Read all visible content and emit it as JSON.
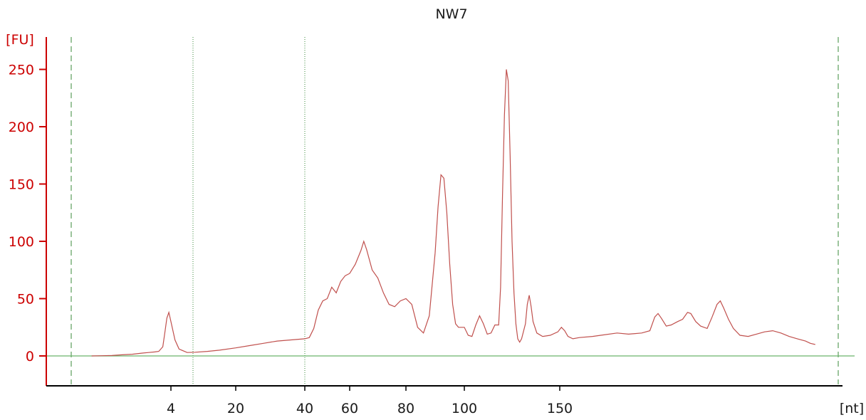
{
  "chart_data": {
    "type": "line",
    "title": "NW7",
    "ylabel": "[FU]",
    "xlabel": "[nt]",
    "ylim": [
      -25,
      270
    ],
    "y_ticks": [
      0,
      50,
      100,
      150,
      200,
      250
    ],
    "x_ticks": [
      4,
      20,
      40,
      60,
      80,
      100,
      150
    ],
    "grid": false,
    "colors": {
      "trace": "#c0504d",
      "baseline": "#6ab46a",
      "y_axis": "#cc0000",
      "x_axis": "#000000",
      "markers": "#3a8a3a"
    },
    "series": [
      {
        "values": [
          [
            -35,
            0
          ],
          [
            -30,
            0.2
          ],
          [
            -25,
            0.4
          ],
          [
            -20,
            1
          ],
          [
            -15,
            1.5
          ],
          [
            -10,
            2.5
          ],
          [
            -7,
            3
          ],
          [
            -4,
            3.5
          ],
          [
            -2,
            4
          ],
          [
            0,
            8
          ],
          [
            1,
            20
          ],
          [
            2,
            33
          ],
          [
            3,
            38
          ],
          [
            4,
            30
          ],
          [
            5,
            14
          ],
          [
            6,
            6
          ],
          [
            8,
            3
          ],
          [
            10,
            3.2
          ],
          [
            13,
            4
          ],
          [
            16,
            5
          ],
          [
            20,
            7
          ],
          [
            24,
            9
          ],
          [
            28,
            11
          ],
          [
            32,
            13
          ],
          [
            36,
            14
          ],
          [
            40,
            15
          ],
          [
            42,
            16
          ],
          [
            44,
            24
          ],
          [
            46,
            40
          ],
          [
            48,
            48
          ],
          [
            50,
            50
          ],
          [
            52,
            60
          ],
          [
            54,
            55
          ],
          [
            56,
            65
          ],
          [
            58,
            70
          ],
          [
            60,
            72
          ],
          [
            62,
            80
          ],
          [
            64,
            92
          ],
          [
            65,
            100
          ],
          [
            66,
            93
          ],
          [
            68,
            75
          ],
          [
            70,
            68
          ],
          [
            72,
            55
          ],
          [
            74,
            45
          ],
          [
            76,
            43
          ],
          [
            78,
            48
          ],
          [
            80,
            50
          ],
          [
            82,
            45
          ],
          [
            84,
            25
          ],
          [
            86,
            20
          ],
          [
            88,
            35
          ],
          [
            90,
            90
          ],
          [
            91,
            130
          ],
          [
            92,
            158
          ],
          [
            93,
            155
          ],
          [
            94,
            125
          ],
          [
            95,
            80
          ],
          [
            96,
            45
          ],
          [
            97,
            28
          ],
          [
            98,
            25
          ],
          [
            100,
            25
          ],
          [
            102,
            18
          ],
          [
            104,
            17
          ],
          [
            106,
            27
          ],
          [
            108,
            35
          ],
          [
            110,
            28
          ],
          [
            112,
            19
          ],
          [
            114,
            20
          ],
          [
            116,
            27
          ],
          [
            118,
            27
          ],
          [
            119,
            60
          ],
          [
            120,
            140
          ],
          [
            121,
            210
          ],
          [
            122,
            250
          ],
          [
            123,
            240
          ],
          [
            124,
            175
          ],
          [
            125,
            100
          ],
          [
            126,
            55
          ],
          [
            127,
            28
          ],
          [
            128,
            15
          ],
          [
            129,
            12
          ],
          [
            130,
            15
          ],
          [
            132,
            28
          ],
          [
            133,
            45
          ],
          [
            134,
            53
          ],
          [
            135,
            43
          ],
          [
            136,
            30
          ],
          [
            138,
            20
          ],
          [
            141,
            17
          ],
          [
            145,
            18
          ],
          [
            149,
            21
          ],
          [
            151,
            25
          ],
          [
            153,
            22
          ],
          [
            155,
            17
          ],
          [
            158,
            15
          ],
          [
            162,
            16
          ],
          [
            170,
            17
          ],
          [
            175,
            18
          ],
          [
            185,
            20
          ],
          [
            192,
            19
          ],
          [
            200,
            20
          ],
          [
            205,
            22
          ],
          [
            208,
            34
          ],
          [
            210,
            37
          ],
          [
            212,
            33
          ],
          [
            215,
            26
          ],
          [
            218,
            27
          ],
          [
            222,
            30
          ],
          [
            225,
            32
          ],
          [
            228,
            38
          ],
          [
            230,
            37
          ],
          [
            233,
            30
          ],
          [
            236,
            26
          ],
          [
            240,
            24
          ],
          [
            243,
            34
          ],
          [
            246,
            45
          ],
          [
            248,
            48
          ],
          [
            250,
            42
          ],
          [
            253,
            32
          ],
          [
            256,
            24
          ],
          [
            260,
            18
          ],
          [
            265,
            17
          ],
          [
            270,
            19
          ],
          [
            275,
            21
          ],
          [
            280,
            22
          ],
          [
            285,
            20
          ],
          [
            290,
            17
          ],
          [
            295,
            15
          ],
          [
            300,
            13
          ],
          [
            303,
            11
          ],
          [
            306,
            10
          ]
        ]
      }
    ]
  }
}
